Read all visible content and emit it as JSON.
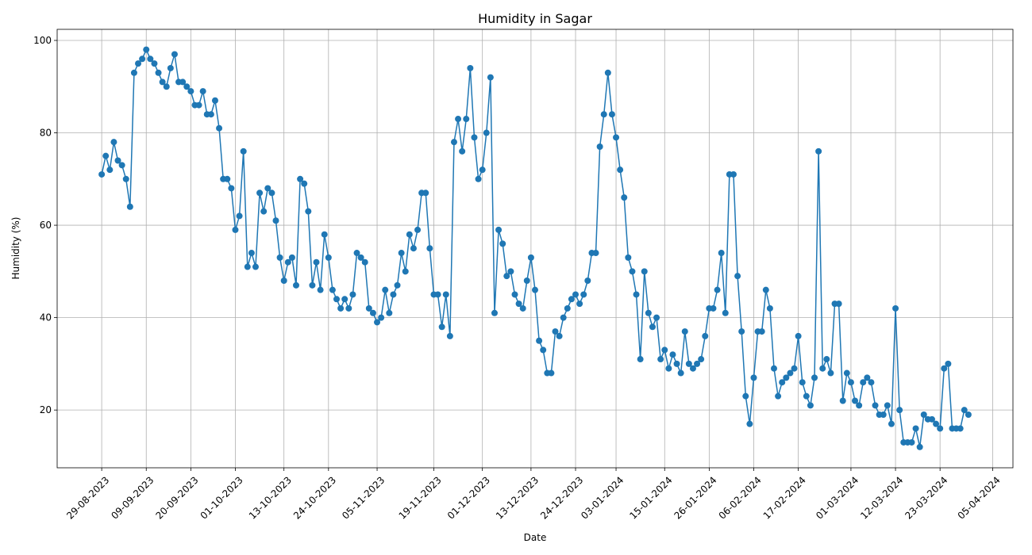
{
  "chart_data": {
    "type": "line",
    "title": "Humidity in Sagar",
    "x_label": "Date",
    "y_label": "Humidity (%)",
    "x": [
      "29-08-2023",
      "30-08-2023",
      "31-08-2023",
      "01-09-2023",
      "02-09-2023",
      "03-09-2023",
      "04-09-2023",
      "05-09-2023",
      "06-09-2023",
      "07-09-2023",
      "08-09-2023",
      "09-09-2023",
      "10-09-2023",
      "11-09-2023",
      "12-09-2023",
      "13-09-2023",
      "14-09-2023",
      "15-09-2023",
      "16-09-2023",
      "17-09-2023",
      "18-09-2023",
      "19-09-2023",
      "20-09-2023",
      "21-09-2023",
      "22-09-2023",
      "23-09-2023",
      "24-09-2023",
      "25-09-2023",
      "26-09-2023",
      "27-09-2023",
      "28-09-2023",
      "29-09-2023",
      "30-09-2023",
      "01-10-2023",
      "02-10-2023",
      "03-10-2023",
      "04-10-2023",
      "05-10-2023",
      "06-10-2023",
      "07-10-2023",
      "08-10-2023",
      "09-10-2023",
      "10-10-2023",
      "11-10-2023",
      "12-10-2023",
      "13-10-2023",
      "14-10-2023",
      "15-10-2023",
      "16-10-2023",
      "17-10-2023",
      "18-10-2023",
      "19-10-2023",
      "20-10-2023",
      "21-10-2023",
      "22-10-2023",
      "23-10-2023",
      "24-10-2023",
      "25-10-2023",
      "26-10-2023",
      "27-10-2023",
      "28-10-2023",
      "29-10-2023",
      "30-10-2023",
      "31-10-2023",
      "01-11-2023",
      "02-11-2023",
      "03-11-2023",
      "04-11-2023",
      "05-11-2023",
      "06-11-2023",
      "07-11-2023",
      "08-11-2023",
      "09-11-2023",
      "10-11-2023",
      "11-11-2023",
      "12-11-2023",
      "13-11-2023",
      "14-11-2023",
      "15-11-2023",
      "16-11-2023",
      "17-11-2023",
      "18-11-2023",
      "19-11-2023",
      "20-11-2023",
      "21-11-2023",
      "22-11-2023",
      "23-11-2023",
      "24-11-2023",
      "25-11-2023",
      "26-11-2023",
      "27-11-2023",
      "28-11-2023",
      "29-11-2023",
      "30-11-2023",
      "01-12-2023",
      "02-12-2023",
      "03-12-2023",
      "04-12-2023",
      "05-12-2023",
      "06-12-2023",
      "07-12-2023",
      "08-12-2023",
      "09-12-2023",
      "10-12-2023",
      "11-12-2023",
      "12-12-2023",
      "13-12-2023",
      "14-12-2023",
      "15-12-2023",
      "16-12-2023",
      "17-12-2023",
      "18-12-2023",
      "19-12-2023",
      "20-12-2023",
      "21-12-2023",
      "22-12-2023",
      "23-12-2023",
      "24-12-2023",
      "25-12-2023",
      "26-12-2023",
      "27-12-2023",
      "28-12-2023",
      "29-12-2023",
      "30-12-2023",
      "31-12-2023",
      "01-01-2024",
      "02-01-2024",
      "03-01-2024",
      "04-01-2024",
      "05-01-2024",
      "06-01-2024",
      "07-01-2024",
      "08-01-2024",
      "09-01-2024",
      "10-01-2024",
      "11-01-2024",
      "12-01-2024",
      "13-01-2024",
      "14-01-2024",
      "15-01-2024",
      "16-01-2024",
      "17-01-2024",
      "18-01-2024",
      "19-01-2024",
      "20-01-2024",
      "21-01-2024",
      "22-01-2024",
      "23-01-2024",
      "24-01-2024",
      "25-01-2024",
      "26-01-2024",
      "27-01-2024",
      "28-01-2024",
      "29-01-2024",
      "30-01-2024",
      "31-01-2024",
      "01-02-2024",
      "02-02-2024",
      "03-02-2024",
      "04-02-2024",
      "05-02-2024",
      "06-02-2024",
      "07-02-2024",
      "08-02-2024",
      "09-02-2024",
      "10-02-2024",
      "11-02-2024",
      "12-02-2024",
      "13-02-2024",
      "14-02-2024",
      "15-02-2024",
      "16-02-2024",
      "17-02-2024",
      "18-02-2024",
      "19-02-2024",
      "20-02-2024",
      "21-02-2024",
      "22-02-2024",
      "23-02-2024",
      "24-02-2024",
      "25-02-2024",
      "26-02-2024",
      "27-02-2024",
      "28-02-2024",
      "29-02-2024",
      "01-03-2024",
      "02-03-2024",
      "03-03-2024",
      "04-03-2024",
      "05-03-2024",
      "06-03-2024",
      "07-03-2024",
      "08-03-2024",
      "09-03-2024",
      "10-03-2024",
      "11-03-2024",
      "12-03-2024",
      "13-03-2024",
      "14-03-2024",
      "15-03-2024",
      "16-03-2024",
      "17-03-2024",
      "18-03-2024",
      "19-03-2024",
      "20-03-2024",
      "21-03-2024",
      "22-03-2024",
      "23-03-2024",
      "24-03-2024",
      "25-03-2024",
      "26-03-2024",
      "27-03-2024",
      "28-03-2024",
      "29-03-2024",
      "30-03-2024"
    ],
    "series": [
      {
        "name": "Humidity",
        "color": "#1f77b4",
        "values": [
          71,
          75,
          72,
          78,
          74,
          73,
          70,
          64,
          93,
          95,
          96,
          98,
          96,
          95,
          93,
          91,
          90,
          94,
          97,
          91,
          91,
          90,
          89,
          86,
          86,
          89,
          84,
          84,
          87,
          81,
          70,
          70,
          68,
          59,
          62,
          76,
          51,
          54,
          51,
          67,
          63,
          68,
          67,
          61,
          53,
          48,
          52,
          53,
          47,
          70,
          69,
          63,
          47,
          52,
          46,
          58,
          53,
          46,
          44,
          42,
          44,
          42,
          45,
          54,
          53,
          52,
          42,
          41,
          39,
          40,
          46,
          41,
          45,
          47,
          54,
          50,
          58,
          55,
          59,
          67,
          67,
          55,
          45,
          45,
          38,
          45,
          36,
          78,
          83,
          76,
          83,
          94,
          79,
          70,
          72,
          80,
          92,
          41,
          59,
          56,
          49,
          50,
          45,
          43,
          42,
          48,
          53,
          46,
          35,
          33,
          28,
          28,
          37,
          36,
          40,
          42,
          44,
          45,
          43,
          45,
          48,
          54,
          54,
          77,
          84,
          93,
          84,
          79,
          72,
          66,
          53,
          50,
          45,
          31,
          50,
          41,
          38,
          40,
          31,
          33,
          29,
          32,
          30,
          28,
          37,
          30,
          29,
          30,
          31,
          36,
          42,
          42,
          46,
          54,
          41,
          71,
          71,
          49,
          37,
          23,
          17,
          27,
          37,
          37,
          46,
          42,
          29,
          23,
          26,
          27,
          28,
          29,
          36,
          26,
          23,
          21,
          27,
          76,
          29,
          31,
          28,
          43,
          43,
          22,
          28,
          26,
          22,
          21,
          26,
          27,
          26,
          21,
          19,
          19,
          21,
          17,
          42,
          20,
          13,
          13,
          13,
          16,
          12,
          19,
          18,
          18,
          17,
          16,
          29,
          30,
          16,
          16,
          16,
          20,
          19
        ]
      }
    ],
    "xlim": [
      "18-08-2023",
      "10-04-2024"
    ],
    "xticks": [
      "29-08-2023",
      "09-09-2023",
      "20-09-2023",
      "01-10-2023",
      "13-10-2023",
      "24-10-2023",
      "05-11-2023",
      "19-11-2023",
      "01-12-2023",
      "13-12-2023",
      "24-12-2023",
      "03-01-2024",
      "15-01-2024",
      "26-01-2024",
      "06-02-2024",
      "17-02-2024",
      "01-03-2024",
      "12-03-2024",
      "23-03-2024",
      "05-04-2024"
    ],
    "ylim": [
      7.5,
      102.4
    ],
    "yticks": [
      20,
      40,
      60,
      80,
      100
    ],
    "grid": true,
    "marker": "circle"
  }
}
